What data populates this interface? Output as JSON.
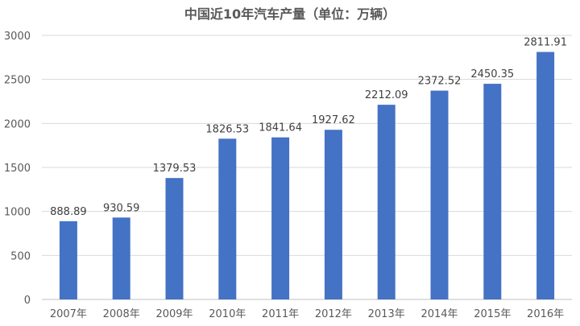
{
  "chart_data": {
    "type": "bar",
    "title": "中国近10年汽车产量（单位：万辆）",
    "xlabel": "",
    "ylabel": "",
    "categories": [
      "2007年",
      "2008年",
      "2009年",
      "2010年",
      "2011年",
      "2012年",
      "2013年",
      "2014年",
      "2015年",
      "2016年"
    ],
    "values": [
      888.89,
      930.59,
      1379.53,
      1826.53,
      1841.64,
      1927.62,
      2212.09,
      2372.52,
      2450.35,
      2811.91
    ],
    "data_labels": [
      "888.89",
      "930.59",
      "1379.53",
      "1826.53",
      "1841.64",
      "1927.62",
      "2212.09",
      "2372.52",
      "2450.35",
      "2811.91"
    ],
    "ylim": [
      0,
      3000
    ],
    "yticks": [
      0,
      500,
      1000,
      1500,
      2000,
      2500,
      3000
    ],
    "grid": true,
    "legend": "none",
    "bar_color": "#4472c4"
  }
}
